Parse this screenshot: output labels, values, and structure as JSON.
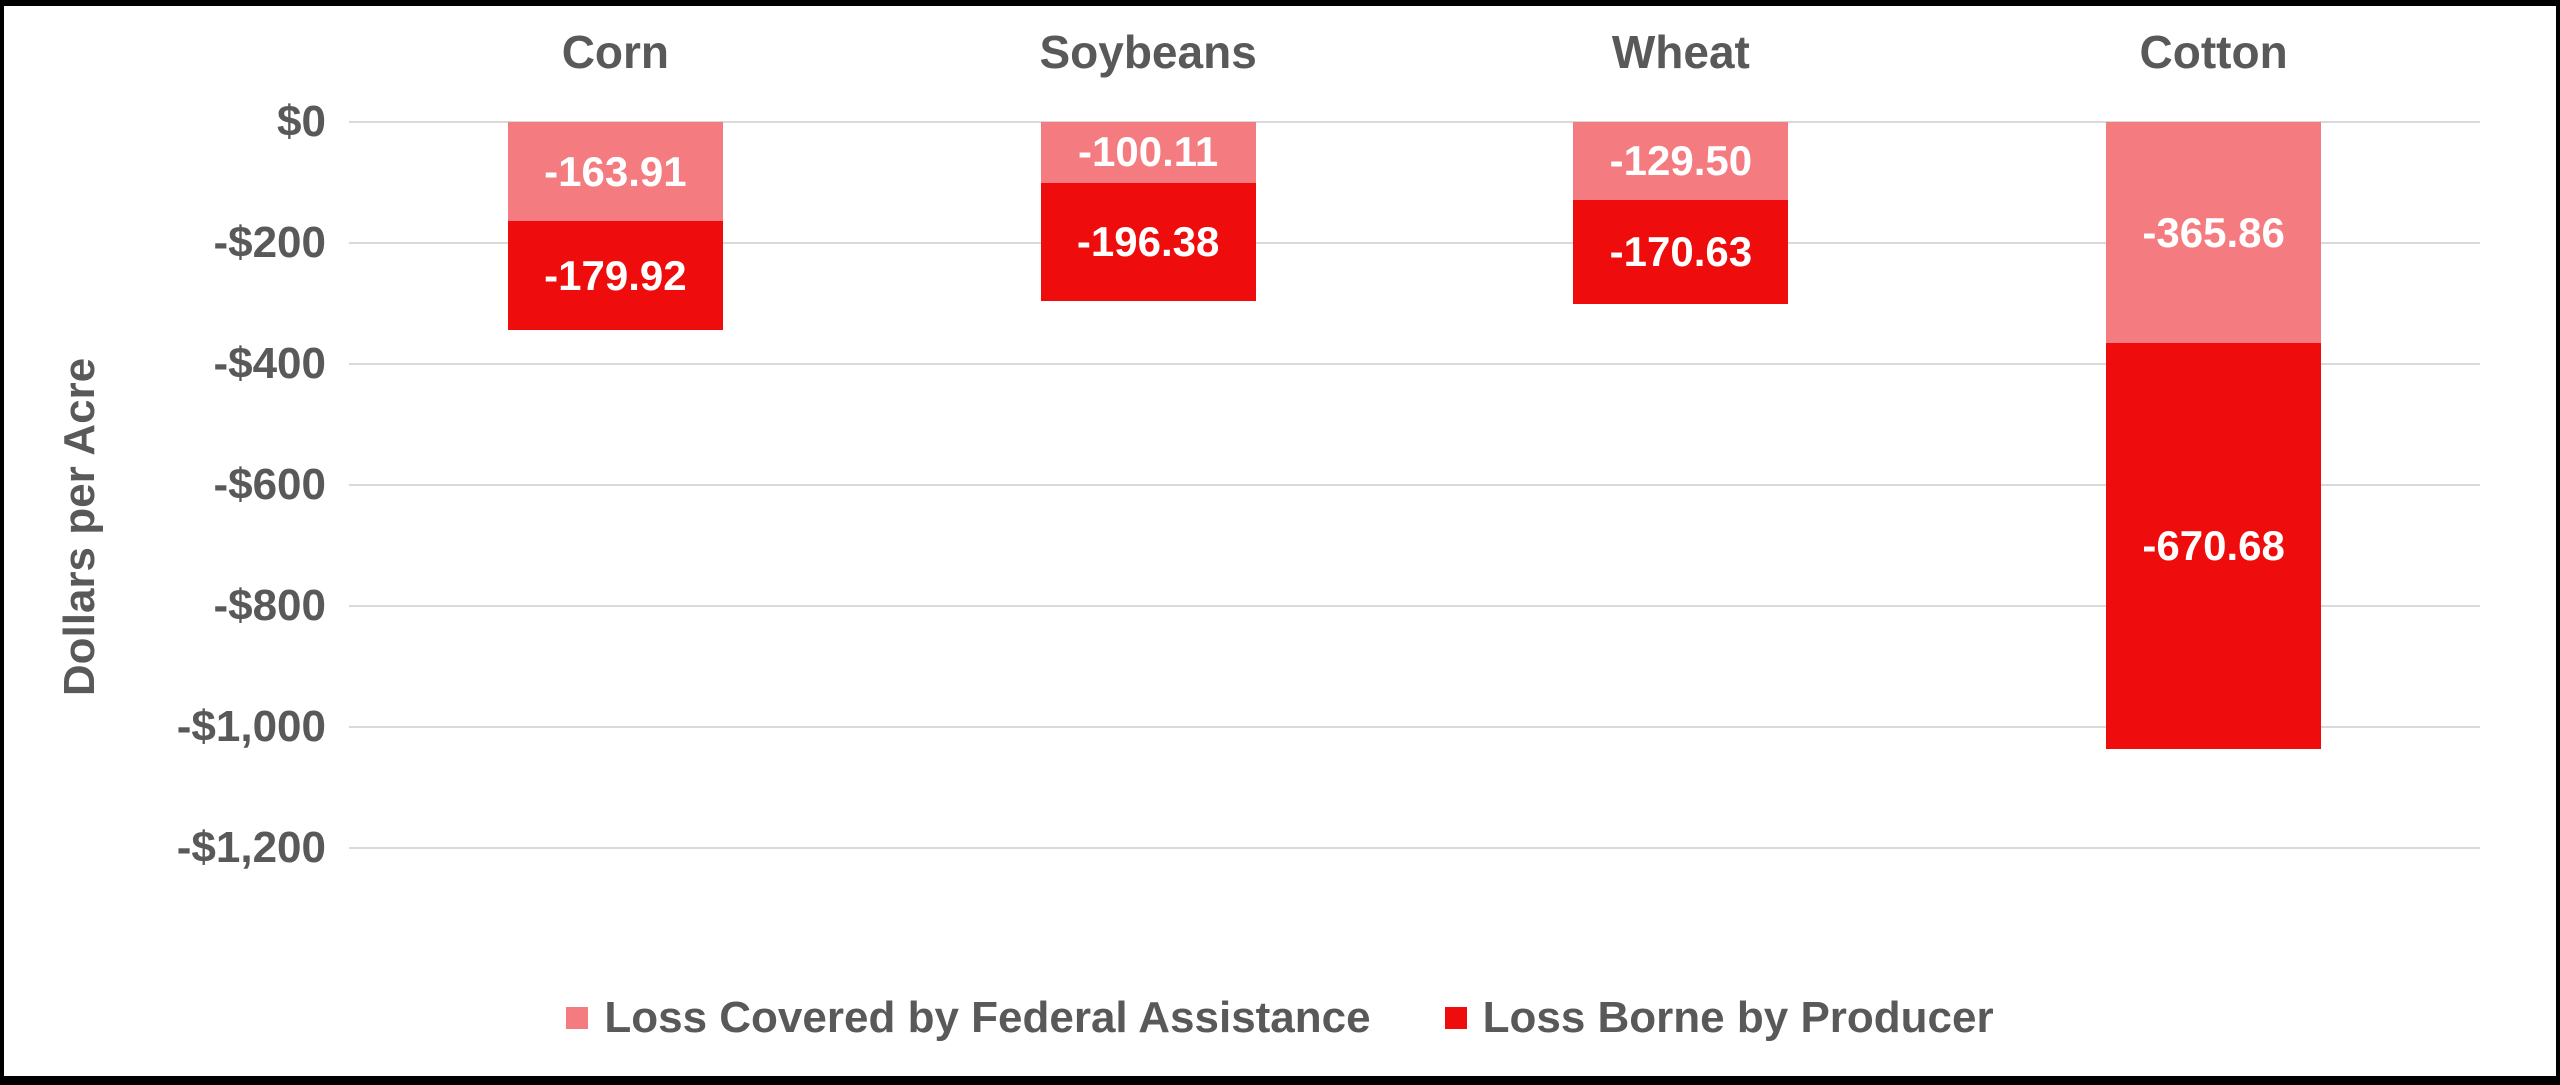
{
  "chart_data": {
    "type": "bar",
    "stacked": true,
    "orientation": "vertical",
    "ylabel": "Dollars per Acre",
    "categories": [
      "Corn",
      "Soybeans",
      "Wheat",
      "Cotton"
    ],
    "series": [
      {
        "name": "Loss Covered by Federal Assistance",
        "color": "#F47C80",
        "values": [
          -163.91,
          -100.11,
          -129.5,
          -365.86
        ],
        "labels": [
          "-163.91",
          "-100.11",
          "-129.50",
          "-365.86"
        ]
      },
      {
        "name": "Loss Borne by Producer",
        "color": "#EE0C0C",
        "values": [
          -179.92,
          -196.38,
          -170.63,
          -670.68
        ],
        "labels": [
          "-179.92",
          "-196.38",
          "-170.63",
          "-670.68"
        ]
      }
    ],
    "y_ticks": [
      {
        "value": 0,
        "label": "$0"
      },
      {
        "value": -200,
        "label": "-$200"
      },
      {
        "value": -400,
        "label": "-$400"
      },
      {
        "value": -600,
        "label": "-$600"
      },
      {
        "value": -800,
        "label": "-$800"
      },
      {
        "value": -1000,
        "label": "-$1,000"
      },
      {
        "value": -1200,
        "label": "-$1,200"
      }
    ],
    "ylim": [
      -1300,
      0
    ],
    "grid": true,
    "legend_position": "bottom",
    "colors": {
      "text": "#595959",
      "gridline": "#D9D9D9",
      "value_label": "#FFFFFF",
      "frame": "#000000",
      "background": "#FFFFFF"
    }
  }
}
